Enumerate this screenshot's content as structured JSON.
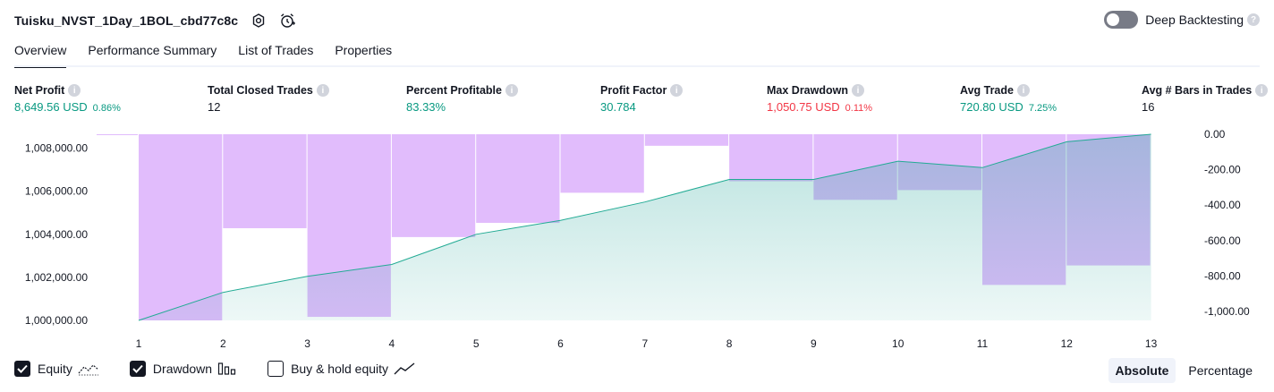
{
  "header": {
    "title": "Tuisku_NVST_1Day_1BOL_cbd77c8c"
  },
  "deep_backtesting": {
    "label": "Deep Backtesting",
    "enabled": false
  },
  "tabs": [
    {
      "label": "Overview",
      "active": true
    },
    {
      "label": "Performance Summary",
      "active": false
    },
    {
      "label": "List of Trades",
      "active": false
    },
    {
      "label": "Properties",
      "active": false
    }
  ],
  "metrics": [
    {
      "label": "Net Profit",
      "value": "8,649.56 USD",
      "pct": "0.86%",
      "tone": "green"
    },
    {
      "label": "Total Closed Trades",
      "value": "12",
      "pct": "",
      "tone": "neutral"
    },
    {
      "label": "Percent Profitable",
      "value": "83.33%",
      "pct": "",
      "tone": "green"
    },
    {
      "label": "Profit Factor",
      "value": "30.784",
      "pct": "",
      "tone": "green"
    },
    {
      "label": "Max Drawdown",
      "value": "1,050.75 USD",
      "pct": "0.11%",
      "tone": "red"
    },
    {
      "label": "Avg Trade",
      "value": "720.80 USD",
      "pct": "7.25%",
      "tone": "green"
    },
    {
      "label": "Avg # Bars in Trades",
      "value": "16",
      "pct": "",
      "tone": "neutral"
    }
  ],
  "chart_data": {
    "type": "area",
    "x": [
      1,
      2,
      3,
      4,
      5,
      6,
      7,
      8,
      9,
      10,
      11,
      12,
      13
    ],
    "series": [
      {
        "name": "Equity",
        "axis": "left",
        "values": [
          1000000,
          1001300,
          1002050,
          1002600,
          1004000,
          1004650,
          1005500,
          1006550,
          1006550,
          1007400,
          1007100,
          1008300,
          1008650
        ]
      },
      {
        "name": "Drawdown",
        "axis": "right",
        "type": "bar",
        "values": [
          0,
          -1050,
          -530,
          -1030,
          -580,
          -500,
          -330,
          -65,
          -265,
          -370,
          -315,
          -850,
          -740
        ]
      }
    ],
    "left_axis": {
      "ticks": [
        "1,000,000.00",
        "1,002,000.00",
        "1,004,000.00",
        "1,006,000.00",
        "1,008,000.00"
      ],
      "range": [
        1000000,
        1008650
      ]
    },
    "right_axis": {
      "ticks": [
        "0.00",
        "-200.00",
        "-400.00",
        "-600.00",
        "-800.00",
        "-1,000.00"
      ],
      "range": [
        -1050,
        0
      ]
    },
    "x_tick_labels": [
      "1",
      "2",
      "3",
      "4",
      "5",
      "6",
      "7",
      "8",
      "9",
      "10",
      "11",
      "12",
      "13"
    ],
    "colors": {
      "equity_line": "#22ab94",
      "equity_fill": "#26a69a",
      "drawdown": "#ce93fa"
    }
  },
  "legend": [
    {
      "label": "Equity",
      "checked": true,
      "icon": "equity-line-icon"
    },
    {
      "label": "Drawdown",
      "checked": true,
      "icon": "drawdown-bars-icon"
    },
    {
      "label": "Buy & hold equity",
      "checked": false,
      "icon": "buy-hold-line-icon"
    }
  ],
  "modes": [
    {
      "label": "Absolute",
      "active": true
    },
    {
      "label": "Percentage",
      "active": false
    }
  ]
}
